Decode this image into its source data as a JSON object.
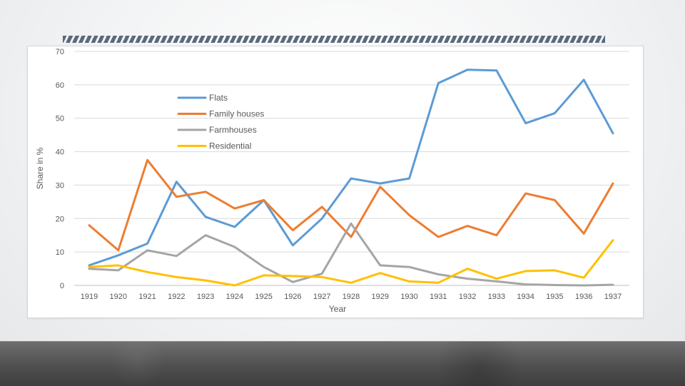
{
  "chart_data": {
    "type": "line",
    "title": "",
    "xlabel": "Year",
    "ylabel": "Share in %",
    "ylim": [
      0,
      70
    ],
    "yticks": [
      0,
      10,
      20,
      30,
      40,
      50,
      60,
      70
    ],
    "categories": [
      "1919",
      "1920",
      "1921",
      "1922",
      "1923",
      "1924",
      "1925",
      "1926",
      "1927",
      "1928",
      "1929",
      "1930",
      "1931",
      "1932",
      "1933",
      "1934",
      "1935",
      "1936",
      "1937"
    ],
    "grid": true,
    "legend_position": "top-left",
    "series": [
      {
        "name": "Flats",
        "color": "#5b9bd5",
        "values": [
          6,
          9,
          12.5,
          31,
          20.5,
          17.5,
          25.5,
          12,
          20,
          32,
          30.5,
          32,
          60.5,
          64.5,
          64.3,
          48.5,
          51.5,
          61.5,
          45.5
        ]
      },
      {
        "name": "Family houses",
        "color": "#ed7d31",
        "values": [
          18,
          10.5,
          37.5,
          26.5,
          28,
          23,
          25.5,
          16.5,
          23.5,
          14.5,
          29.5,
          21,
          14.5,
          17.8,
          15,
          27.5,
          25.5,
          15.5,
          30.5
        ]
      },
      {
        "name": "Farmhouses",
        "color": "#a5a5a5",
        "values": [
          5,
          4.5,
          10.5,
          8.8,
          15,
          11.5,
          5.5,
          1,
          3.5,
          18.5,
          6,
          5.5,
          3.3,
          2,
          1.2,
          0.3,
          0.1,
          0,
          0.2
        ]
      },
      {
        "name": "Residential",
        "color": "#ffc000",
        "values": [
          5.5,
          6,
          4,
          2.5,
          1.5,
          0,
          3,
          2.8,
          2.5,
          0.8,
          3.7,
          1.2,
          0.8,
          5,
          2,
          4.3,
          4.5,
          2.3,
          13.5
        ]
      }
    ]
  }
}
